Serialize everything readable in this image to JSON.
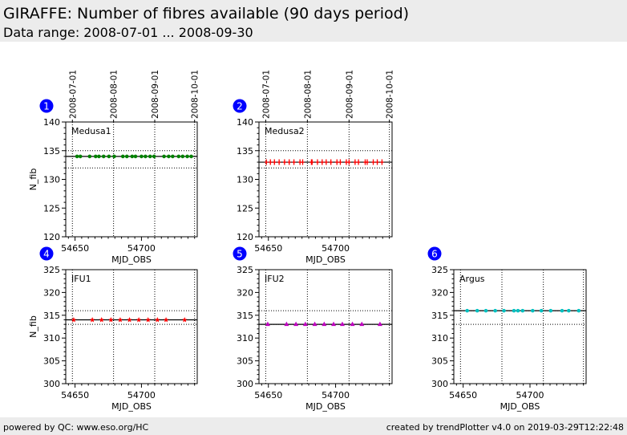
{
  "header": {
    "title": "GIRAFFE: Number of fibres available (90 days period)",
    "subtitle": "Data range: 2008-07-01 ... 2008-09-30"
  },
  "footer": {
    "left": "powered by QC: www.eso.org/HC",
    "right": "created by trendPlotter v4.0 on 2019-03-29T12:22:48"
  },
  "chart_data": [
    {
      "type": "scatter",
      "panel": "1",
      "label": "Medusa1",
      "xlabel": "MJD_OBS",
      "ylabel": "N_fib",
      "xlim": [
        54643,
        54742
      ],
      "ylim": [
        120,
        140
      ],
      "xticks": [
        54650,
        54700
      ],
      "yticks": [
        120,
        125,
        130,
        135,
        140
      ],
      "date_ticks": [
        "2008-07-01",
        "2008-08-01",
        "2008-09-01",
        "2008-10-01"
      ],
      "date_tick_mjd": [
        54648,
        54679,
        54710,
        54740
      ],
      "ref_line": 134,
      "limits": [
        135,
        132
      ],
      "marker": "circle",
      "color": "#008000",
      "x": [
        54651.5,
        54654,
        54661,
        54665.5,
        54668,
        54671.5,
        54675.5,
        54679.5,
        54686,
        54689,
        54693,
        54695.5,
        54700,
        54703,
        54706.5,
        54709.5,
        54717,
        54720.5,
        54723.5,
        54728,
        54731,
        54734.5,
        54737.5
      ],
      "y": 134
    },
    {
      "type": "scatter",
      "panel": "2",
      "label": "Medusa2",
      "xlabel": "MJD_OBS",
      "ylabel": "",
      "xlim": [
        54643,
        54742
      ],
      "ylim": [
        120,
        140
      ],
      "xticks": [
        54650,
        54700
      ],
      "yticks": [
        120,
        125,
        130,
        135,
        140
      ],
      "date_ticks": [
        "2008-07-01",
        "2008-08-01",
        "2008-09-01",
        "2008-10-01"
      ],
      "date_tick_mjd": [
        54648,
        54679,
        54710,
        54740
      ],
      "ref_line": 133,
      "limits": [
        135,
        132
      ],
      "marker": "plus",
      "color": "#ff0000",
      "x": [
        54648.5,
        54651.5,
        54654.5,
        54658,
        54662,
        54665.5,
        54669,
        54673.5,
        54675.5,
        54682,
        54682.5,
        54686.5,
        54690,
        54693,
        54696.5,
        54701,
        54703.5,
        54708,
        54710,
        54714.5,
        54717,
        54722,
        54723.5,
        54728,
        54731,
        54734.5
      ],
      "y": 133
    },
    {
      "type": "scatter",
      "panel": "4",
      "label": "IFU1",
      "xlabel": "MJD_OBS",
      "ylabel": "N_fib",
      "xlim": [
        54643,
        54742
      ],
      "ylim": [
        300,
        325
      ],
      "xticks": [
        54650,
        54700
      ],
      "yticks": [
        300,
        305,
        310,
        315,
        320,
        325
      ],
      "ref_line": 314,
      "limits": [
        316,
        313
      ],
      "marker": "star",
      "color": "#ff0000",
      "x": [
        54649,
        54663,
        54670,
        54677,
        54684,
        54691,
        54698,
        54705,
        54712,
        54718.5,
        54732.5
      ],
      "y": 314
    },
    {
      "type": "scatter",
      "panel": "5",
      "label": "IFU2",
      "xlabel": "MJD_OBS",
      "ylabel": "",
      "xlim": [
        54643,
        54742
      ],
      "ylim": [
        300,
        325
      ],
      "xticks": [
        54650,
        54700
      ],
      "yticks": [
        300,
        305,
        310,
        315,
        320,
        325
      ],
      "ref_line": 313,
      "limits": [
        316,
        313
      ],
      "marker": "triangle",
      "color": "#c000c0",
      "x": [
        54649.5,
        54663.5,
        54670.5,
        54677.5,
        54684.5,
        54691.5,
        54698.5,
        54705,
        54712.5,
        54719.5,
        54733
      ],
      "y": 313
    },
    {
      "type": "scatter",
      "panel": "6",
      "label": "Argus",
      "xlabel": "MJD_OBS",
      "ylabel": "",
      "xlim": [
        54643,
        54742
      ],
      "ylim": [
        300,
        325
      ],
      "xticks": [
        54650,
        54700
      ],
      "yticks": [
        300,
        305,
        310,
        315,
        320,
        325
      ],
      "ref_line": 316,
      "limits": [
        316,
        313
      ],
      "marker": "circle",
      "color": "#00c0c0",
      "x": [
        54653,
        54660.5,
        54667,
        54674,
        54680.5,
        54688,
        54691,
        54694.5,
        54702,
        54708.5,
        54715.5,
        54724,
        54729,
        54736.5
      ],
      "y": 316
    }
  ],
  "badge_color": "#0000ff"
}
